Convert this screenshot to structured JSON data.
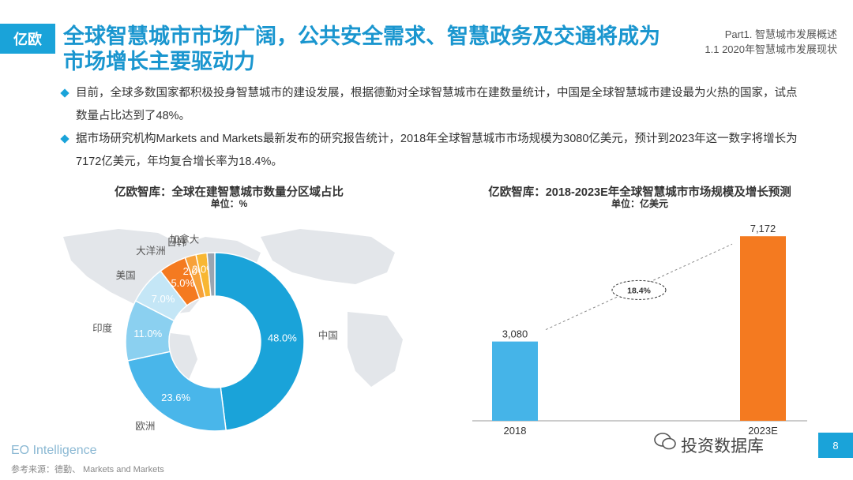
{
  "logo": {
    "text": "亿欧"
  },
  "headline": "全球智慧城市市场广阔，公共安全需求、智慧政务及交通将成为市场增长主要驱动力",
  "part": {
    "line1": "Part1. 智慧城市发展概述",
    "line2": "1.1 2020年智慧城市发展现状"
  },
  "bullets": [
    "目前，全球多数国家都积极投身智慧城市的建设发展，根据德勤对全球智慧城市在建数量统计，中国是全球智慧城市建设最为火热的国家，试点数量占比达到了48%。",
    "据市场研究机构Markets and Markets最新发布的研究报告统计，2018年全球智慧城市市场规模为3080亿美元，预计到2023年这一数字将增长为7172亿美元，年均复合增长率为18.4%。"
  ],
  "colors": {
    "accent": "#1aa3d9",
    "bar2018": "#45b4e8",
    "bar2023": "#f47a20"
  },
  "chart_data": [
    {
      "type": "pie",
      "title": "亿欧智库：全球在建智慧城市数量分区域占比",
      "unit": "单位：%",
      "slices": [
        {
          "label": "中国",
          "value": 48.0,
          "value_label": "48.0%",
          "color": "#1aa3d9"
        },
        {
          "label": "欧洲",
          "value": 23.6,
          "value_label": "23.6%",
          "color": "#49b6ea"
        },
        {
          "label": "印度",
          "value": 11.0,
          "value_label": "11.0%",
          "color": "#8bd0f0"
        },
        {
          "label": "美国",
          "value": 7.0,
          "value_label": "7.0%",
          "color": "#c4e6f6"
        },
        {
          "label": "大洋洲",
          "value": 5.0,
          "value_label": "5.0%",
          "color": "#f47a20"
        },
        {
          "label": "日韩",
          "value": 2.0,
          "value_label": "2.0%",
          "color": "#f7a13a"
        },
        {
          "label": "加拿大",
          "value": 2.0,
          "value_label": "2.0%",
          "color": "#f8b732"
        },
        {
          "label": "",
          "value": 1.4,
          "value_label": "",
          "color": "#9aa5b1"
        }
      ]
    },
    {
      "type": "bar",
      "title": "亿欧智库：2018-2023E年全球智慧城市市场规模及增长预测",
      "unit": "单位：亿美元",
      "categories": [
        "2018",
        "2023E"
      ],
      "values": [
        3080,
        7172
      ],
      "value_labels": [
        "3,080",
        "7,172"
      ],
      "cagr_label": "18.4%",
      "ylim": [
        0,
        7700
      ]
    }
  ],
  "footer": {
    "brand": "EO Intelligence",
    "source": "参考来源：德勤、 Markets and Markets"
  },
  "watermark": "投资数据库",
  "page_number": "8"
}
